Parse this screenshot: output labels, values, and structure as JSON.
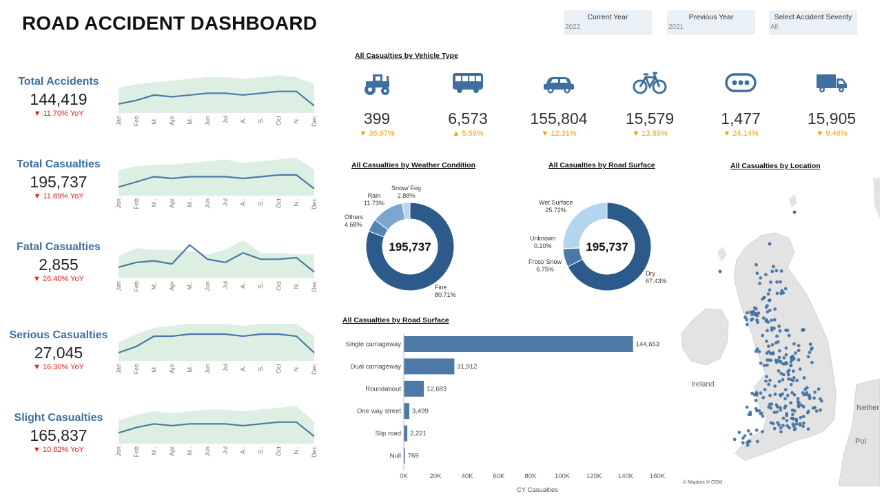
{
  "header": {
    "title": "ROAD ACCIDENT DASHBOARD"
  },
  "filters": [
    {
      "label": "Current Year",
      "value": "2022"
    },
    {
      "label": "Previous Year",
      "value": "2021"
    },
    {
      "label": "Select Accident Severity",
      "value": "All"
    }
  ],
  "months": [
    "Jan",
    "Feb",
    "M..",
    "Apr",
    "M..",
    "Jun",
    "Jul",
    "A..",
    "S..",
    "Oct",
    "N..",
    "Dec"
  ],
  "kpis": [
    {
      "label": "Total Accidents",
      "value": "144,419",
      "yoy": "▼ 11.70% YoY",
      "cy": [
        61,
        63,
        66,
        65,
        66,
        67,
        67,
        66,
        67,
        68,
        68,
        60
      ],
      "py": [
        70,
        72,
        73,
        74,
        75,
        76,
        76,
        75,
        76,
        77,
        76,
        72
      ]
    },
    {
      "label": "Total Casualties",
      "value": "195,737",
      "yoy": "▼ 11.89% YoY",
      "cy": [
        60,
        63,
        66,
        65,
        66,
        66,
        66,
        65,
        66,
        67,
        67,
        59
      ],
      "py": [
        70,
        72,
        73,
        73,
        74,
        75,
        76,
        74,
        75,
        76,
        77,
        70
      ]
    },
    {
      "label": "Fatal Casualties",
      "value": "2,855",
      "yoy": "▼ 26.40% YoY",
      "cy": [
        55,
        58,
        59,
        57,
        69,
        60,
        58,
        64,
        60,
        60,
        61,
        52
      ],
      "py": [
        62,
        67,
        66,
        66,
        65,
        63,
        66,
        72,
        64,
        64,
        63,
        63
      ]
    },
    {
      "label": "Serious Casualties",
      "value": "27,045",
      "yoy": "▼ 16.30% YoY",
      "cy": [
        58,
        61,
        66,
        66,
        67,
        67,
        67,
        66,
        67,
        67,
        66,
        58
      ],
      "py": [
        63,
        67,
        70,
        71,
        72,
        72,
        72,
        71,
        72,
        72,
        72,
        66
      ]
    },
    {
      "label": "Slight Casualties",
      "value": "165,837",
      "yoy": "▼ 10.82% YoY",
      "cy": [
        59,
        62,
        64,
        63,
        64,
        64,
        64,
        63,
        64,
        65,
        65,
        57
      ],
      "py": [
        66,
        69,
        71,
        70,
        71,
        72,
        72,
        71,
        72,
        73,
        74,
        65
      ]
    }
  ],
  "vehicle": {
    "title": "All Casualties by Vehicle Type",
    "items": [
      {
        "icon": "tractor-icon",
        "value": "399",
        "change": "▼ 36.97%"
      },
      {
        "icon": "bus-icon",
        "value": "6,573",
        "change": "▲ 5.59%"
      },
      {
        "icon": "car-icon",
        "value": "155,804",
        "change": "▼ 12.31%"
      },
      {
        "icon": "bicycle-icon",
        "value": "15,579",
        "change": "▼ 13.89%"
      },
      {
        "icon": "other-vehicle-icon",
        "value": "1,477",
        "change": "▼ 24.14%"
      },
      {
        "icon": "truck-icon",
        "value": "15,905",
        "change": "▼ 9.46%"
      }
    ]
  },
  "weather": {
    "title": "All Casualties by Weather Condition",
    "center": "195,737",
    "labels": {
      "fine": [
        "Fine",
        "80.71%"
      ],
      "others": [
        "Others",
        "4.68%"
      ],
      "rain": [
        "Rain",
        "11.73%"
      ],
      "snow": [
        "Snow/ Fog",
        "2.88%"
      ]
    }
  },
  "surface_donut": {
    "title": "All Casualties by Road Surface",
    "center": "195,737",
    "labels": {
      "dry": [
        "Dry",
        "67.43%"
      ],
      "frost": [
        "Frost/ Snow",
        "6.75%"
      ],
      "unknown": [
        "Unknown",
        "0.10%"
      ],
      "wet": [
        "Wet Surface",
        "25.72%"
      ]
    }
  },
  "location": {
    "title": "All Casualties by Location",
    "attribution": "© Mapbox © OSM",
    "labels": {
      "ireland": "Ireland",
      "nether": "Nether",
      "pol": "Pol"
    }
  },
  "bar_section": {
    "title": "All Casualties by Road Surface"
  },
  "chart_data": [
    {
      "type": "line",
      "title": "Total Accidents",
      "x": [
        "Jan",
        "Feb",
        "M..",
        "Apr",
        "M..",
        "Jun",
        "Jul",
        "A..",
        "S..",
        "Oct",
        "N..",
        "Dec"
      ],
      "series": [
        {
          "values": [
            61,
            63,
            66,
            65,
            66,
            67,
            67,
            66,
            67,
            68,
            68,
            60
          ]
        },
        {
          "values": [
            70,
            72,
            73,
            74,
            75,
            76,
            76,
            75,
            76,
            77,
            76,
            72
          ]
        }
      ]
    },
    {
      "type": "line",
      "title": "Total Casualties",
      "x": [
        "Jan",
        "Feb",
        "M..",
        "Apr",
        "M..",
        "Jun",
        "Jul",
        "A..",
        "S..",
        "Oct",
        "N..",
        "Dec"
      ],
      "series": [
        {
          "values": [
            60,
            63,
            66,
            65,
            66,
            66,
            66,
            65,
            66,
            67,
            67,
            59
          ]
        },
        {
          "values": [
            70,
            72,
            73,
            73,
            74,
            75,
            76,
            74,
            75,
            76,
            77,
            70
          ]
        }
      ]
    },
    {
      "type": "line",
      "title": "Fatal Casualties",
      "x": [
        "Jan",
        "Feb",
        "M..",
        "Apr",
        "M..",
        "Jun",
        "Jul",
        "A..",
        "S..",
        "Oct",
        "N..",
        "Dec"
      ],
      "series": [
        {
          "values": [
            55,
            58,
            59,
            57,
            69,
            60,
            58,
            64,
            60,
            60,
            61,
            52
          ]
        },
        {
          "values": [
            62,
            67,
            66,
            66,
            65,
            63,
            66,
            72,
            64,
            64,
            63,
            63
          ]
        }
      ]
    },
    {
      "type": "line",
      "title": "Serious Casualties",
      "x": [
        "Jan",
        "Feb",
        "M..",
        "Apr",
        "M..",
        "Jun",
        "Jul",
        "A..",
        "S..",
        "Oct",
        "N..",
        "Dec"
      ],
      "series": [
        {
          "values": [
            58,
            61,
            66,
            66,
            67,
            67,
            67,
            66,
            67,
            67,
            66,
            58
          ]
        },
        {
          "values": [
            63,
            67,
            70,
            71,
            72,
            72,
            72,
            71,
            72,
            72,
            72,
            66
          ]
        }
      ]
    },
    {
      "type": "line",
      "title": "Slight Casualties",
      "x": [
        "Jan",
        "Feb",
        "M..",
        "Apr",
        "M..",
        "Jun",
        "Jul",
        "A..",
        "S..",
        "Oct",
        "N..",
        "Dec"
      ],
      "series": [
        {
          "values": [
            59,
            62,
            64,
            63,
            64,
            64,
            64,
            63,
            64,
            65,
            65,
            57
          ]
        },
        {
          "values": [
            66,
            69,
            71,
            70,
            71,
            72,
            72,
            71,
            72,
            73,
            74,
            65
          ]
        }
      ]
    },
    {
      "type": "pie",
      "title": "All Casualties by Weather Condition",
      "categories": [
        "Fine",
        "Others",
        "Rain",
        "Snow/ Fog"
      ],
      "values": [
        80.71,
        4.68,
        11.73,
        2.88
      ],
      "colors": [
        "#2c5a8a",
        "#5384b5",
        "#7ba7cf",
        "#b7d6ec"
      ]
    },
    {
      "type": "pie",
      "title": "All Casualties by Road Surface",
      "categories": [
        "Dry",
        "Frost/ Snow",
        "Unknown",
        "Wet Surface"
      ],
      "values": [
        67.43,
        6.75,
        0.1,
        25.72
      ],
      "colors": [
        "#2c5a8a",
        "#4a78a8",
        "#6f98c2",
        "#b4d5ee"
      ]
    },
    {
      "type": "bar",
      "title": "All Casualties by Road Surface",
      "categories": [
        "Single carriageway",
        "Dual carriageway",
        "Roundabout",
        "One way street",
        "Slip road",
        "Null"
      ],
      "values": [
        144653,
        31912,
        12683,
        3499,
        2221,
        769
      ],
      "value_labels": [
        "144,653",
        "31,912",
        "12,683",
        "3,499",
        "2,221",
        "769"
      ],
      "xlabel": "CY Casualties",
      "xticks": [
        "0K",
        "20K",
        "40K",
        "60K",
        "80K",
        "100K",
        "120K",
        "140K",
        "160K"
      ],
      "xlim": [
        0,
        160000
      ],
      "color": "#4e79a7"
    }
  ]
}
